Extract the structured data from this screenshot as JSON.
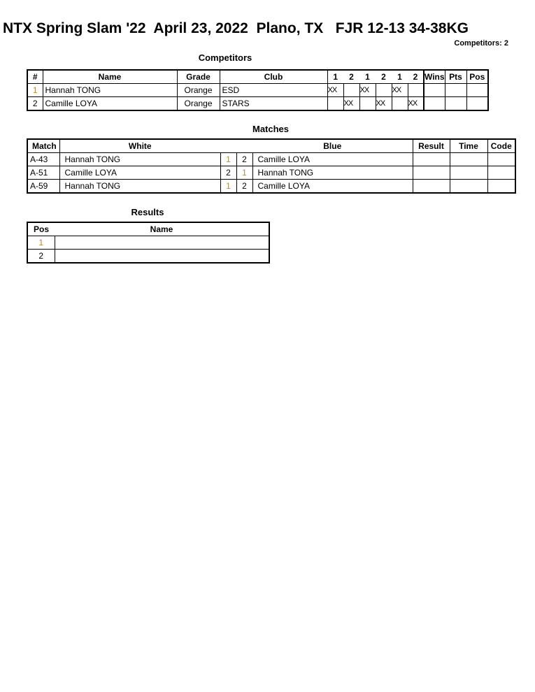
{
  "header": {
    "title": "NTX Spring Slam '22  April 23, 2022  Plano, TX   FJR 12-13 34-38KG",
    "competitors_count": "Competitors: 2"
  },
  "competitors": {
    "title": "Competitors",
    "columns": [
      "#",
      "Name",
      "Grade",
      "Club",
      "1",
      "2",
      "1",
      "2",
      "1",
      "2",
      "Wins",
      "Pts",
      "Pos"
    ],
    "rows": [
      {
        "num": "1",
        "name": "Hannah TONG",
        "grade": "Orange",
        "club": "ESD",
        "marks": [
          "XX",
          "",
          "XX",
          "",
          "XX",
          ""
        ],
        "wins": "",
        "pts": "",
        "pos": ""
      },
      {
        "num": "2",
        "name": "Camille LOYA",
        "grade": "Orange",
        "club": "STARS",
        "marks": [
          "",
          "XX",
          "",
          "XX",
          "",
          "XX"
        ],
        "wins": "",
        "pts": "",
        "pos": ""
      }
    ]
  },
  "matches": {
    "title": "Matches",
    "columns": [
      "Match",
      "White",
      "Blue",
      "Result",
      "Time",
      "Code"
    ],
    "rows": [
      {
        "match": "A-43",
        "white": "Hannah TONG",
        "white_num": "1",
        "blue_num": "2",
        "blue": "Camille LOYA",
        "result": "",
        "time": "",
        "code": ""
      },
      {
        "match": "A-51",
        "white": "Camille LOYA",
        "white_num": "2",
        "blue_num": "1",
        "blue": "Hannah TONG",
        "result": "",
        "time": "",
        "code": ""
      },
      {
        "match": "A-59",
        "white": "Hannah TONG",
        "white_num": "1",
        "blue_num": "2",
        "blue": "Camille LOYA",
        "result": "",
        "time": "",
        "code": ""
      }
    ]
  },
  "results": {
    "title": "Results",
    "columns": [
      "Pos",
      "Name"
    ],
    "rows": [
      {
        "pos": "1",
        "name": ""
      },
      {
        "pos": "2",
        "name": ""
      }
    ]
  }
}
